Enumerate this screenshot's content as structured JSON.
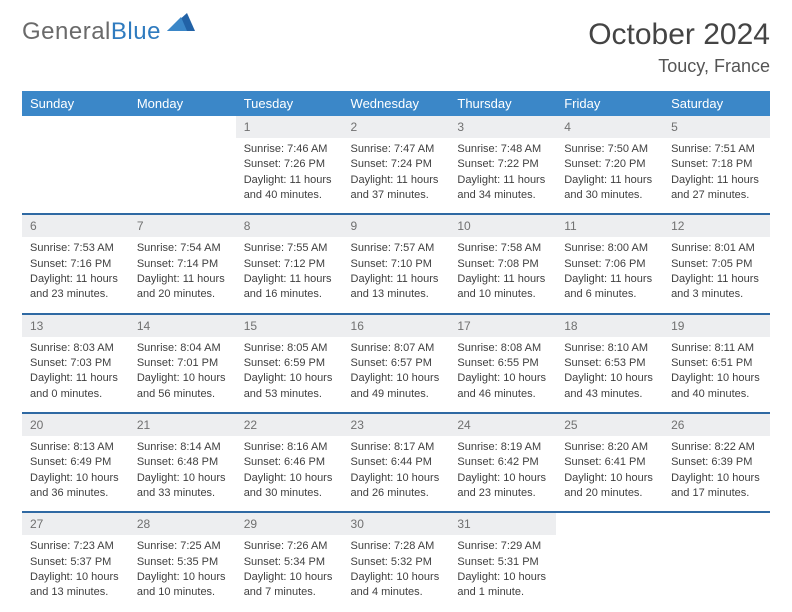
{
  "brand": {
    "part1": "General",
    "part2": "Blue"
  },
  "title": "October 2024",
  "location": "Toucy, France",
  "header_bg": "#3b87c8",
  "border_color": "#2f69a3",
  "daynum_bg": "#edeef0",
  "days": [
    "Sunday",
    "Monday",
    "Tuesday",
    "Wednesday",
    "Thursday",
    "Friday",
    "Saturday"
  ],
  "weeks": [
    [
      null,
      null,
      {
        "n": "1",
        "sr": "Sunrise: 7:46 AM",
        "ss": "Sunset: 7:26 PM",
        "d1": "Daylight: 11 hours",
        "d2": "and 40 minutes."
      },
      {
        "n": "2",
        "sr": "Sunrise: 7:47 AM",
        "ss": "Sunset: 7:24 PM",
        "d1": "Daylight: 11 hours",
        "d2": "and 37 minutes."
      },
      {
        "n": "3",
        "sr": "Sunrise: 7:48 AM",
        "ss": "Sunset: 7:22 PM",
        "d1": "Daylight: 11 hours",
        "d2": "and 34 minutes."
      },
      {
        "n": "4",
        "sr": "Sunrise: 7:50 AM",
        "ss": "Sunset: 7:20 PM",
        "d1": "Daylight: 11 hours",
        "d2": "and 30 minutes."
      },
      {
        "n": "5",
        "sr": "Sunrise: 7:51 AM",
        "ss": "Sunset: 7:18 PM",
        "d1": "Daylight: 11 hours",
        "d2": "and 27 minutes."
      }
    ],
    [
      {
        "n": "6",
        "sr": "Sunrise: 7:53 AM",
        "ss": "Sunset: 7:16 PM",
        "d1": "Daylight: 11 hours",
        "d2": "and 23 minutes."
      },
      {
        "n": "7",
        "sr": "Sunrise: 7:54 AM",
        "ss": "Sunset: 7:14 PM",
        "d1": "Daylight: 11 hours",
        "d2": "and 20 minutes."
      },
      {
        "n": "8",
        "sr": "Sunrise: 7:55 AM",
        "ss": "Sunset: 7:12 PM",
        "d1": "Daylight: 11 hours",
        "d2": "and 16 minutes."
      },
      {
        "n": "9",
        "sr": "Sunrise: 7:57 AM",
        "ss": "Sunset: 7:10 PM",
        "d1": "Daylight: 11 hours",
        "d2": "and 13 minutes."
      },
      {
        "n": "10",
        "sr": "Sunrise: 7:58 AM",
        "ss": "Sunset: 7:08 PM",
        "d1": "Daylight: 11 hours",
        "d2": "and 10 minutes."
      },
      {
        "n": "11",
        "sr": "Sunrise: 8:00 AM",
        "ss": "Sunset: 7:06 PM",
        "d1": "Daylight: 11 hours",
        "d2": "and 6 minutes."
      },
      {
        "n": "12",
        "sr": "Sunrise: 8:01 AM",
        "ss": "Sunset: 7:05 PM",
        "d1": "Daylight: 11 hours",
        "d2": "and 3 minutes."
      }
    ],
    [
      {
        "n": "13",
        "sr": "Sunrise: 8:03 AM",
        "ss": "Sunset: 7:03 PM",
        "d1": "Daylight: 11 hours",
        "d2": "and 0 minutes."
      },
      {
        "n": "14",
        "sr": "Sunrise: 8:04 AM",
        "ss": "Sunset: 7:01 PM",
        "d1": "Daylight: 10 hours",
        "d2": "and 56 minutes."
      },
      {
        "n": "15",
        "sr": "Sunrise: 8:05 AM",
        "ss": "Sunset: 6:59 PM",
        "d1": "Daylight: 10 hours",
        "d2": "and 53 minutes."
      },
      {
        "n": "16",
        "sr": "Sunrise: 8:07 AM",
        "ss": "Sunset: 6:57 PM",
        "d1": "Daylight: 10 hours",
        "d2": "and 49 minutes."
      },
      {
        "n": "17",
        "sr": "Sunrise: 8:08 AM",
        "ss": "Sunset: 6:55 PM",
        "d1": "Daylight: 10 hours",
        "d2": "and 46 minutes."
      },
      {
        "n": "18",
        "sr": "Sunrise: 8:10 AM",
        "ss": "Sunset: 6:53 PM",
        "d1": "Daylight: 10 hours",
        "d2": "and 43 minutes."
      },
      {
        "n": "19",
        "sr": "Sunrise: 8:11 AM",
        "ss": "Sunset: 6:51 PM",
        "d1": "Daylight: 10 hours",
        "d2": "and 40 minutes."
      }
    ],
    [
      {
        "n": "20",
        "sr": "Sunrise: 8:13 AM",
        "ss": "Sunset: 6:49 PM",
        "d1": "Daylight: 10 hours",
        "d2": "and 36 minutes."
      },
      {
        "n": "21",
        "sr": "Sunrise: 8:14 AM",
        "ss": "Sunset: 6:48 PM",
        "d1": "Daylight: 10 hours",
        "d2": "and 33 minutes."
      },
      {
        "n": "22",
        "sr": "Sunrise: 8:16 AM",
        "ss": "Sunset: 6:46 PM",
        "d1": "Daylight: 10 hours",
        "d2": "and 30 minutes."
      },
      {
        "n": "23",
        "sr": "Sunrise: 8:17 AM",
        "ss": "Sunset: 6:44 PM",
        "d1": "Daylight: 10 hours",
        "d2": "and 26 minutes."
      },
      {
        "n": "24",
        "sr": "Sunrise: 8:19 AM",
        "ss": "Sunset: 6:42 PM",
        "d1": "Daylight: 10 hours",
        "d2": "and 23 minutes."
      },
      {
        "n": "25",
        "sr": "Sunrise: 8:20 AM",
        "ss": "Sunset: 6:41 PM",
        "d1": "Daylight: 10 hours",
        "d2": "and 20 minutes."
      },
      {
        "n": "26",
        "sr": "Sunrise: 8:22 AM",
        "ss": "Sunset: 6:39 PM",
        "d1": "Daylight: 10 hours",
        "d2": "and 17 minutes."
      }
    ],
    [
      {
        "n": "27",
        "sr": "Sunrise: 7:23 AM",
        "ss": "Sunset: 5:37 PM",
        "d1": "Daylight: 10 hours",
        "d2": "and 13 minutes."
      },
      {
        "n": "28",
        "sr": "Sunrise: 7:25 AM",
        "ss": "Sunset: 5:35 PM",
        "d1": "Daylight: 10 hours",
        "d2": "and 10 minutes."
      },
      {
        "n": "29",
        "sr": "Sunrise: 7:26 AM",
        "ss": "Sunset: 5:34 PM",
        "d1": "Daylight: 10 hours",
        "d2": "and 7 minutes."
      },
      {
        "n": "30",
        "sr": "Sunrise: 7:28 AM",
        "ss": "Sunset: 5:32 PM",
        "d1": "Daylight: 10 hours",
        "d2": "and 4 minutes."
      },
      {
        "n": "31",
        "sr": "Sunrise: 7:29 AM",
        "ss": "Sunset: 5:31 PM",
        "d1": "Daylight: 10 hours",
        "d2": "and 1 minute."
      },
      null,
      null
    ]
  ]
}
